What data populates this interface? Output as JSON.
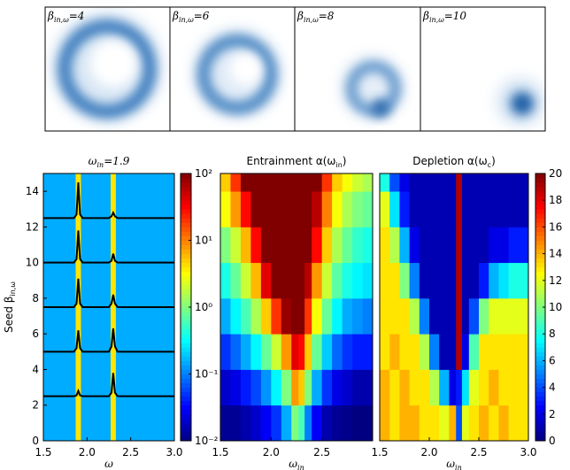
{
  "top_panels": [
    {
      "label": "β",
      "subscript": "in,ω",
      "suffix": "=4"
    },
    {
      "label": "β",
      "subscript": "in,ω",
      "suffix": "=6"
    },
    {
      "label": "β",
      "subscript": "in,ω",
      "suffix": "=8"
    },
    {
      "label": "β",
      "subscript": "in,ω",
      "suffix": "=10"
    }
  ],
  "chart_data": [
    {
      "type": "heatmap",
      "title": "ω",
      "title_sub": "in",
      "title_end": "=1.9",
      "xlabel": "ω",
      "ylabel": "Seed β",
      "ylabel_sub": "in,ω",
      "xlim": [
        1.5,
        3.0
      ],
      "xticks": [
        1.5,
        {
          "value": 2.0,
          "label": "2.0"
        },
        2.5,
        {
          "value": 3.0,
          "label": "3.0"
        }
      ],
      "ylim": [
        0,
        15
      ],
      "yticks": [
        0,
        2,
        4,
        6,
        8,
        10,
        12,
        14
      ],
      "scale": "log",
      "clim": [
        0.01,
        100
      ],
      "colorbar": {
        "ticks": [
          {
            "value": 0.01,
            "label": "10⁻²"
          },
          {
            "value": 0.1,
            "label": "10⁻¹"
          },
          {
            "value": 1,
            "label": "10⁰"
          },
          {
            "value": 10,
            "label": "10¹"
          },
          {
            "value": 100,
            "label": "10²"
          }
        ]
      },
      "x_edges": [
        1.5,
        1.87,
        1.93,
        2.27,
        2.33,
        3.0
      ],
      "y_edges": [
        0,
        15
      ],
      "values": [
        [
          0.15,
          4,
          0.15,
          4,
          0.15
        ]
      ],
      "lines": {
        "color": "#000000",
        "x": [
          1.5,
          1.85,
          1.88,
          1.9,
          1.92,
          1.95,
          2.25,
          2.28,
          2.3,
          2.32,
          2.35,
          3.0
        ],
        "series": [
          {
            "values": [
              2.5,
              2.5,
              2.55,
              2.8,
              2.55,
              2.5,
              2.5,
              2.7,
              3.8,
              2.7,
              2.5,
              2.5
            ]
          },
          {
            "values": [
              5,
              5,
              5.2,
              6.2,
              5.2,
              5,
              5,
              5.3,
              6.3,
              5.3,
              5,
              5
            ]
          },
          {
            "values": [
              7.5,
              7.5,
              7.7,
              9.1,
              7.7,
              7.5,
              7.5,
              7.7,
              8.2,
              7.7,
              7.5,
              7.5
            ]
          },
          {
            "values": [
              10,
              10,
              10.2,
              11.8,
              10.2,
              10,
              10,
              10.1,
              10.5,
              10.1,
              10,
              10
            ]
          },
          {
            "values": [
              12.5,
              12.5,
              12.7,
              14.5,
              12.7,
              12.5,
              12.5,
              12.6,
              12.8,
              12.6,
              12.5,
              12.5
            ]
          }
        ]
      }
    },
    {
      "type": "heatmap",
      "title": "Entrainment α(ω",
      "title_sub": "in",
      "title_end": ")",
      "xlabel": "ω",
      "xlabel_sub": "in",
      "xlim": [
        1.5,
        3.0
      ],
      "xticks": [
        1.5,
        {
          "value": 2.0,
          "label": "2.0"
        },
        2.5
      ],
      "ylim": [
        0,
        15
      ],
      "scale": "log",
      "clim": [
        0.01,
        100
      ],
      "x_edges": [
        1.5,
        1.6,
        1.7,
        1.8,
        1.9,
        2.0,
        2.1,
        2.2,
        2.27,
        2.33,
        2.4,
        2.5,
        2.6,
        2.7,
        2.8,
        2.9,
        3.0
      ],
      "y_edges": [
        0,
        2,
        4,
        6,
        8,
        10,
        12,
        14,
        15
      ],
      "values": [
        [
          0.012,
          0.012,
          0.015,
          0.02,
          0.03,
          0.05,
          0.15,
          1,
          0.6,
          0.1,
          0.03,
          0.015,
          0.012,
          0.011,
          0.01,
          0.01
        ],
        [
          0.02,
          0.025,
          0.04,
          0.06,
          0.12,
          0.3,
          1,
          8,
          5,
          1,
          0.15,
          0.05,
          0.025,
          0.02,
          0.015,
          0.015
        ],
        [
          0.05,
          0.08,
          0.15,
          0.3,
          0.8,
          2,
          8,
          40,
          30,
          5,
          0.8,
          0.2,
          0.08,
          0.05,
          0.04,
          0.04
        ],
        [
          0.15,
          0.3,
          0.6,
          1.5,
          5,
          20,
          80,
          100,
          100,
          20,
          3,
          0.8,
          0.3,
          0.15,
          0.12,
          0.1
        ],
        [
          0.4,
          0.8,
          2,
          6,
          40,
          100,
          100,
          100,
          100,
          60,
          8,
          2,
          0.7,
          0.4,
          0.3,
          0.25
        ],
        [
          1,
          2,
          6,
          30,
          100,
          100,
          100,
          100,
          100,
          100,
          30,
          5,
          1.5,
          0.8,
          0.5,
          0.4
        ],
        [
          3,
          8,
          30,
          100,
          100,
          100,
          100,
          100,
          100,
          100,
          60,
          10,
          3,
          1.5,
          1,
          0.8
        ],
        [
          5,
          20,
          100,
          100,
          100,
          100,
          100,
          100,
          100,
          100,
          100,
          20,
          5,
          3,
          2,
          1.5
        ]
      ]
    },
    {
      "type": "heatmap",
      "title": "Depletion α(ω",
      "title_sub": "c",
      "title_end": ")",
      "xlabel": "ω",
      "xlabel_sub": "in",
      "xlim": [
        1.5,
        3.0
      ],
      "xticks": [
        1.5,
        {
          "value": 2.0,
          "label": "2.0"
        },
        2.5,
        {
          "value": 3.0,
          "label": "3.0"
        }
      ],
      "ylim": [
        0,
        15
      ],
      "scale": "linear",
      "clim": [
        0,
        20
      ],
      "colorbar": {
        "ticks": [
          0,
          2,
          4,
          6,
          8,
          10,
          12,
          14,
          16,
          18,
          20
        ]
      },
      "x_edges": [
        1.5,
        1.6,
        1.7,
        1.8,
        1.9,
        2.0,
        2.1,
        2.2,
        2.27,
        2.33,
        2.4,
        2.5,
        2.6,
        2.7,
        2.8,
        2.9,
        3.0
      ],
      "y_edges": [
        0,
        2,
        4,
        6,
        8,
        10,
        12,
        14,
        15
      ],
      "values": [
        [
          14,
          13,
          14,
          14,
          13,
          13,
          12,
          14,
          4,
          12,
          13,
          14,
          13,
          14,
          13,
          13
        ],
        [
          14,
          13,
          14,
          13,
          13,
          11,
          6,
          2,
          3,
          7,
          12,
          13,
          14,
          13,
          13,
          13
        ],
        [
          13,
          14,
          13,
          13,
          11,
          5,
          1,
          1,
          19,
          2,
          9,
          13,
          13,
          13,
          13,
          13
        ],
        [
          13,
          13,
          13,
          11,
          5,
          1,
          1,
          1,
          19,
          1,
          4,
          10,
          12,
          12,
          12,
          12
        ],
        [
          13,
          13,
          10,
          5,
          1,
          1,
          1,
          1,
          19,
          1,
          1,
          3,
          6,
          7,
          8,
          8
        ],
        [
          13,
          11,
          6,
          2,
          1,
          1,
          1,
          1,
          19,
          1,
          1,
          1,
          2,
          2,
          3,
          3
        ],
        [
          12,
          7,
          3,
          1,
          1,
          1,
          1,
          1,
          19,
          1,
          1,
          1,
          1,
          1,
          1,
          1
        ],
        [
          8,
          4,
          2,
          1,
          1,
          1,
          1,
          1,
          19,
          1,
          1,
          1,
          1,
          1,
          1,
          1
        ]
      ]
    }
  ]
}
